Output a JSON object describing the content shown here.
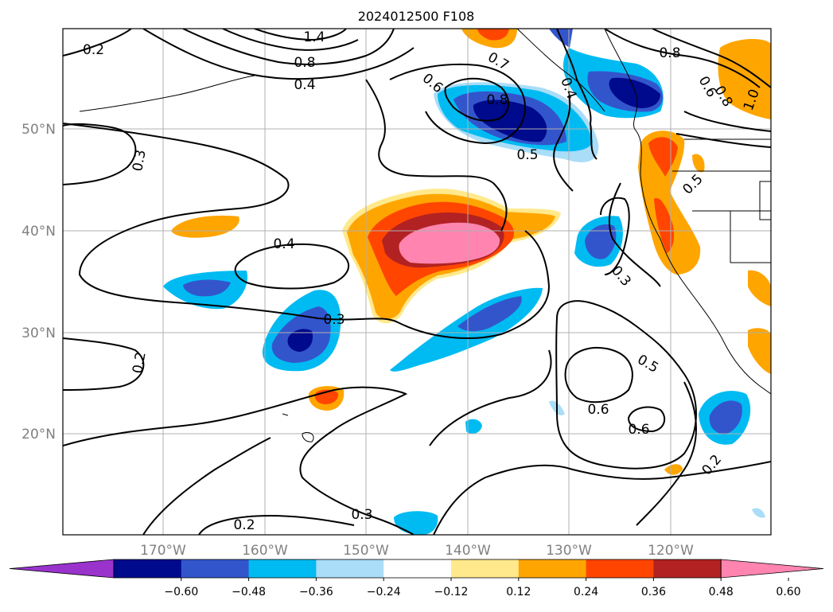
{
  "title": "2024012500 F108",
  "lat_labels": [
    "50°N",
    "40°N",
    "30°N",
    "20°N"
  ],
  "lon_labels": [
    "170°W",
    "160°W",
    "150°W",
    "140°W",
    "130°W",
    "120°W"
  ],
  "colorbar": {
    "ticks": [
      "−0.60",
      "−0.48",
      "−0.36",
      "−0.24",
      "−0.12",
      "0.12",
      "0.24",
      "0.36",
      "0.48",
      "0.60"
    ],
    "colors": [
      "#9933cc",
      "#000a8c",
      "#3355cc",
      "#00bbf2",
      "#aaddf7",
      "#ffffff",
      "#ffe98c",
      "#ffa500",
      "#ff4500",
      "#b22222",
      "#ff85b0"
    ]
  },
  "contour_labels": [
    "0.2",
    "0.3",
    "0.4",
    "0.3",
    "0.2",
    "0.2",
    "0.3",
    "0.6",
    "0.8",
    "0.5",
    "0.7",
    "0.4",
    "0.8",
    "0.6",
    "0.8",
    "1.0",
    "0.5",
    "0.3",
    "0.5",
    "0.6",
    "0.6",
    "0.2",
    "0.4",
    "0.8",
    "1.4"
  ],
  "shading": {
    "positive": "#ffa500",
    "strong_positive": "#ff85b0",
    "negative": "#00bbf2",
    "strong_negative": "#000a8c"
  }
}
